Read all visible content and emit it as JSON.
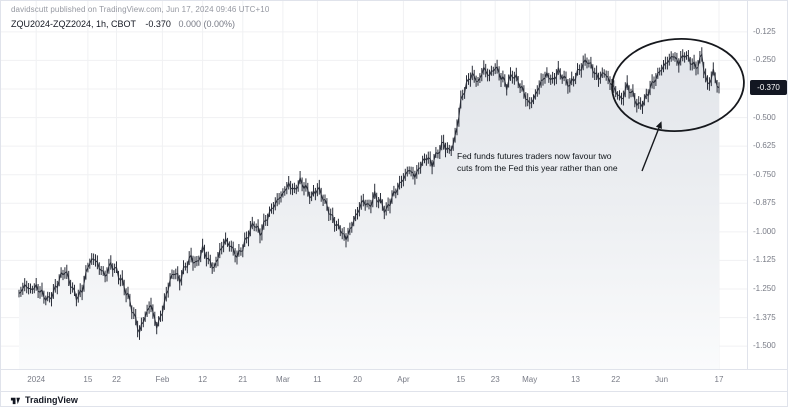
{
  "attribution": "davidscutt published on TradingView.com, Jun 17, 2024 09:46 UTC+10",
  "legend": {
    "symbol": "ZQU2024-ZQZ2024, 1h, CBOT",
    "last_value": "-0.370",
    "change": "0.000 (0.00%)"
  },
  "annotation": {
    "line1": "Fed funds futures traders now favour two",
    "line2": "cuts from the Fed this year rather than one"
  },
  "price_scale": {
    "badge_label": "-0.370",
    "tick_labels": [
      "-0.125",
      "-0.250",
      "-0.375",
      "-0.500",
      "-0.625",
      "-0.750",
      "-0.875",
      "-1.000",
      "-1.125",
      "-1.250",
      "-1.375",
      "-1.500"
    ]
  },
  "footer": {
    "brand": "TradingView"
  },
  "colors": {
    "bar": "#2a2e39",
    "area_top": "#e2e5ea",
    "area_mid": "#edeff2",
    "area_bottom": "#fafbfc",
    "grid": "#f0f1f3",
    "axis_text": "#787b86",
    "badge_bg": "#131722",
    "separator": "#e0e3eb",
    "annotation": "#16181d"
  },
  "chart_data": {
    "type": "line",
    "title": "Fed funds futures spread ZQU2024-ZQZ2024 (CBOT, 1h)",
    "legend_position": "top-left",
    "grid": "faint",
    "ylim": [
      -1.6,
      -0.06
    ],
    "y_ticks": [
      -0.125,
      -0.25,
      -0.375,
      -0.5,
      -0.625,
      -0.75,
      -0.875,
      -1.0,
      -1.125,
      -1.25,
      -1.375,
      -1.5
    ],
    "last_price": -0.37,
    "x_ticks": [
      {
        "label": "2024",
        "index": 3
      },
      {
        "label": "15",
        "index": 12
      },
      {
        "label": "22",
        "index": 17
      },
      {
        "label": "Feb",
        "index": 25
      },
      {
        "label": "12",
        "index": 32
      },
      {
        "label": "21",
        "index": 39
      },
      {
        "label": "Mar",
        "index": 46
      },
      {
        "label": "11",
        "index": 52
      },
      {
        "label": "20",
        "index": 59
      },
      {
        "label": "Apr",
        "index": 67
      },
      {
        "label": "15",
        "index": 77
      },
      {
        "label": "23",
        "index": 83
      },
      {
        "label": "May",
        "index": 89
      },
      {
        "label": "13",
        "index": 97
      },
      {
        "label": "22",
        "index": 104
      },
      {
        "label": "Jun",
        "index": 112
      },
      {
        "label": "17",
        "index": 122
      }
    ],
    "values": [
      -1.27,
      -1.23,
      -1.25,
      -1.24,
      -1.27,
      -1.3,
      -1.27,
      -1.21,
      -1.17,
      -1.23,
      -1.29,
      -1.26,
      -1.15,
      -1.11,
      -1.15,
      -1.19,
      -1.14,
      -1.17,
      -1.22,
      -1.28,
      -1.36,
      -1.44,
      -1.37,
      -1.32,
      -1.42,
      -1.35,
      -1.24,
      -1.17,
      -1.21,
      -1.15,
      -1.11,
      -1.14,
      -1.07,
      -1.12,
      -1.16,
      -1.09,
      -1.04,
      -1.07,
      -1.11,
      -1.07,
      -1.01,
      -0.96,
      -1.01,
      -0.95,
      -0.9,
      -0.86,
      -0.83,
      -0.79,
      -0.82,
      -0.78,
      -0.81,
      -0.85,
      -0.81,
      -0.85,
      -0.91,
      -0.96,
      -0.99,
      -1.03,
      -0.97,
      -0.91,
      -0.86,
      -0.89,
      -0.84,
      -0.87,
      -0.91,
      -0.85,
      -0.81,
      -0.77,
      -0.73,
      -0.76,
      -0.71,
      -0.67,
      -0.7,
      -0.65,
      -0.61,
      -0.65,
      -0.59,
      -0.43,
      -0.35,
      -0.31,
      -0.35,
      -0.29,
      -0.32,
      -0.28,
      -0.32,
      -0.36,
      -0.31,
      -0.34,
      -0.39,
      -0.44,
      -0.4,
      -0.34,
      -0.31,
      -0.34,
      -0.3,
      -0.33,
      -0.36,
      -0.32,
      -0.28,
      -0.25,
      -0.29,
      -0.33,
      -0.3,
      -0.34,
      -0.38,
      -0.42,
      -0.36,
      -0.4,
      -0.45,
      -0.43,
      -0.37,
      -0.33,
      -0.29,
      -0.26,
      -0.23,
      -0.26,
      -0.22,
      -0.25,
      -0.28,
      -0.23,
      -0.36,
      -0.3,
      -0.37
    ]
  }
}
